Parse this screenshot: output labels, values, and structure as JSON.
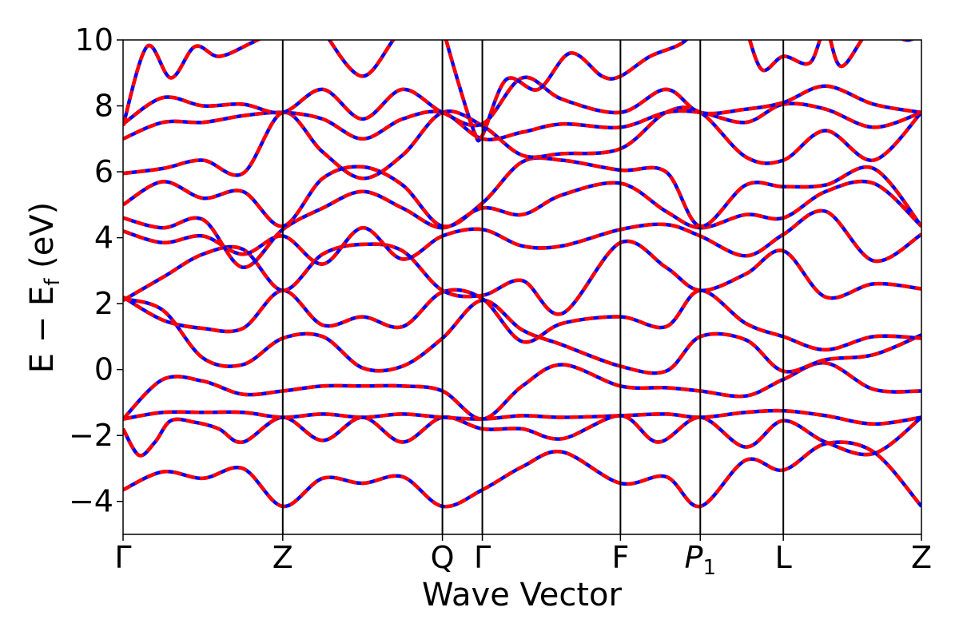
{
  "chart_data": {
    "type": "line",
    "title": "",
    "xlabel": "Wave Vector",
    "ylabel": {
      "main": "E − E",
      "sub": "f",
      "unit": " (eV)"
    },
    "ylim": [
      -5,
      10
    ],
    "y_ticks": [
      -4,
      -2,
      0,
      2,
      4,
      6,
      8,
      10
    ],
    "y_tick_labels": [
      "−4",
      "−2",
      "0",
      "2",
      "4",
      "6",
      "8",
      "10"
    ],
    "xlim": [
      0,
      10
    ],
    "high_symmetry_points": [
      {
        "label": "Γ",
        "x": 0
      },
      {
        "label": "Z",
        "x": 2
      },
      {
        "label": "Q",
        "x": 4
      },
      {
        "label": "Γ",
        "x": 4.5
      },
      {
        "label": "F",
        "x": 6.23
      },
      {
        "label": "P",
        "sub": "1",
        "italic": true,
        "x": 7.23
      },
      {
        "label": "L",
        "x": 8.27
      },
      {
        "label": "Z",
        "x": 10
      }
    ],
    "grid": false,
    "line_colors": {
      "base": "#0000ff",
      "overlay": "#ff0000"
    },
    "series": [
      {
        "x": [
          0,
          0.5,
          1.0,
          1.5,
          2.0,
          2.5,
          3.0,
          3.5,
          4.0,
          4.5,
          5.0,
          5.5,
          6.23,
          6.8,
          7.23,
          7.8,
          8.27,
          8.8,
          9.4,
          10
        ],
        "values": [
          -3.65,
          -3.1,
          -3.3,
          -3.0,
          -4.15,
          -3.3,
          -3.45,
          -3.25,
          -4.15,
          -3.65,
          -2.95,
          -2.5,
          -3.45,
          -3.25,
          -4.15,
          -2.75,
          -3.05,
          -2.25,
          -2.5,
          -4.15
        ]
      },
      {
        "x": [
          0,
          0.2,
          0.4,
          0.6,
          0.9,
          1.2,
          1.5,
          2.0,
          2.5,
          3.0,
          3.5,
          4.0,
          4.5,
          5.0,
          5.5,
          6.23,
          6.7,
          7.23,
          7.8,
          8.27,
          8.8,
          9.4,
          10
        ],
        "values": [
          -1.8,
          -2.6,
          -2.2,
          -1.55,
          -1.6,
          -1.8,
          -2.2,
          -1.45,
          -2.15,
          -1.45,
          -2.2,
          -1.45,
          -1.8,
          -1.8,
          -2.1,
          -1.4,
          -2.2,
          -1.45,
          -2.35,
          -1.55,
          -2.2,
          -2.55,
          -1.45
        ]
      },
      {
        "x": [
          0,
          0.5,
          1.0,
          1.5,
          2.0,
          2.5,
          3.0,
          3.5,
          4.0,
          4.5,
          5.0,
          5.5,
          6.23,
          6.8,
          7.23,
          7.8,
          8.27,
          8.8,
          9.4,
          10
        ],
        "values": [
          -1.5,
          -1.3,
          -1.3,
          -1.3,
          -1.45,
          -1.35,
          -1.45,
          -1.35,
          -1.45,
          -1.5,
          -1.4,
          -1.45,
          -1.4,
          -1.35,
          -1.45,
          -1.3,
          -1.25,
          -1.4,
          -1.65,
          -1.45
        ]
      },
      {
        "x": [
          0,
          0.5,
          1.0,
          1.5,
          2.0,
          2.5,
          3.0,
          3.5,
          4.0,
          4.5,
          5.0,
          5.5,
          6.23,
          6.8,
          7.23,
          7.8,
          8.27,
          8.8,
          9.4,
          10
        ],
        "values": [
          -1.5,
          -0.3,
          -0.35,
          -0.75,
          -0.65,
          -0.5,
          -0.5,
          -0.5,
          -0.65,
          -1.5,
          -0.5,
          0.15,
          -0.5,
          -0.55,
          -0.65,
          -0.8,
          -0.3,
          0.2,
          -0.6,
          -0.65
        ]
      },
      {
        "x": [
          0,
          0.5,
          1.0,
          1.5,
          2.0,
          2.5,
          3.0,
          3.5,
          4.0,
          4.5,
          5.0,
          5.5,
          6.23,
          6.8,
          7.23,
          7.8,
          8.27,
          8.8,
          9.4,
          10
        ],
        "values": [
          2.15,
          1.8,
          0.35,
          0.15,
          0.95,
          1.0,
          0.05,
          0.1,
          0.95,
          2.1,
          1.2,
          0.75,
          0.1,
          -0.05,
          1.0,
          0.9,
          -0.05,
          0.3,
          0.45,
          1.05
        ]
      },
      {
        "x": [
          0,
          0.5,
          1.0,
          1.5,
          2.0,
          2.5,
          3.0,
          3.5,
          4.0,
          4.5,
          5.0,
          5.5,
          6.23,
          6.8,
          7.23,
          7.8,
          8.27,
          8.8,
          9.4,
          10
        ],
        "values": [
          2.2,
          1.5,
          1.25,
          1.25,
          2.4,
          1.35,
          1.6,
          1.3,
          2.35,
          2.15,
          0.85,
          1.4,
          1.6,
          1.3,
          2.4,
          1.4,
          1.0,
          0.6,
          1.0,
          0.95
        ]
      },
      {
        "x": [
          0,
          0.5,
          1.0,
          1.5,
          2.0,
          2.5,
          3.0,
          3.5,
          4.0,
          4.5,
          5.0,
          5.5,
          6.23,
          6.8,
          7.23,
          7.8,
          8.27,
          8.8,
          9.4,
          10
        ],
        "values": [
          2.1,
          2.8,
          3.5,
          3.65,
          2.4,
          3.5,
          3.8,
          3.6,
          2.4,
          2.25,
          2.7,
          1.7,
          3.85,
          3.1,
          2.4,
          2.9,
          3.6,
          2.2,
          2.6,
          2.45
        ]
      },
      {
        "x": [
          0,
          0.5,
          1.0,
          1.5,
          2.0,
          2.5,
          3.0,
          3.5,
          4.0,
          4.5,
          5.0,
          5.5,
          6.23,
          6.8,
          7.23,
          7.8,
          8.27,
          8.8,
          9.4,
          10
        ],
        "values": [
          4.2,
          3.85,
          4.05,
          3.5,
          4.05,
          3.2,
          4.3,
          3.35,
          4.05,
          4.25,
          3.75,
          3.75,
          4.25,
          4.4,
          4.05,
          3.45,
          4.1,
          4.8,
          3.3,
          4.1
        ]
      },
      {
        "x": [
          0,
          0.5,
          1.0,
          1.5,
          2.0,
          2.5,
          3.0,
          3.5,
          4.0,
          4.5,
          5.0,
          5.5,
          6.23,
          6.8,
          7.23,
          7.8,
          8.27,
          8.8,
          9.4,
          10
        ],
        "values": [
          4.6,
          4.3,
          4.55,
          3.1,
          4.25,
          4.9,
          5.4,
          4.9,
          4.3,
          4.9,
          4.7,
          5.3,
          5.65,
          4.8,
          4.3,
          4.7,
          4.6,
          5.4,
          5.65,
          4.35
        ]
      },
      {
        "x": [
          0,
          0.5,
          1.0,
          1.5,
          2.0,
          2.5,
          3.0,
          3.5,
          4.0,
          4.5,
          5.0,
          5.5,
          6.23,
          6.8,
          7.23,
          7.8,
          8.27,
          8.8,
          9.4,
          10
        ],
        "values": [
          5.0,
          5.7,
          5.2,
          5.4,
          4.35,
          5.8,
          6.15,
          5.6,
          4.35,
          5.05,
          6.3,
          6.35,
          6.05,
          6.0,
          4.35,
          5.6,
          5.55,
          5.6,
          6.1,
          4.35
        ]
      },
      {
        "x": [
          0,
          0.5,
          1.0,
          1.5,
          2.0,
          2.5,
          3.0,
          3.5,
          4.0,
          4.5,
          5.0,
          5.5,
          6.23,
          6.8,
          7.23,
          7.8,
          8.27,
          8.8,
          9.4,
          10
        ],
        "values": [
          5.95,
          6.1,
          6.35,
          5.95,
          7.8,
          6.6,
          5.8,
          6.5,
          7.8,
          7.4,
          6.5,
          6.55,
          6.7,
          7.8,
          7.8,
          6.45,
          6.35,
          7.25,
          6.35,
          7.8
        ]
      },
      {
        "x": [
          0,
          0.5,
          1.0,
          1.5,
          2.0,
          2.5,
          3.0,
          3.5,
          4.0,
          4.5,
          5.0,
          5.5,
          6.23,
          6.8,
          7.23,
          7.8,
          8.27,
          8.8,
          9.4,
          10
        ],
        "values": [
          7.0,
          7.5,
          7.5,
          7.7,
          7.8,
          7.6,
          7.0,
          7.6,
          7.8,
          7.0,
          7.2,
          7.45,
          7.35,
          7.8,
          7.8,
          7.5,
          8.05,
          7.9,
          7.35,
          7.8
        ]
      },
      {
        "x": [
          0,
          0.5,
          1.0,
          1.5,
          2.0,
          2.5,
          3.0,
          3.5,
          4.0,
          4.5,
          5.0,
          5.5,
          6.23,
          6.8,
          7.23,
          7.8,
          8.27,
          8.8,
          9.4,
          10
        ],
        "values": [
          7.45,
          8.25,
          8.0,
          8.05,
          7.8,
          8.5,
          7.6,
          8.5,
          7.8,
          7.45,
          8.85,
          8.2,
          7.8,
          8.5,
          7.8,
          7.9,
          8.1,
          8.6,
          8.05,
          7.8
        ]
      },
      {
        "x": [
          0,
          0.3,
          0.6,
          0.9,
          1.2,
          1.6,
          2.0
        ],
        "values": [
          7.4,
          9.8,
          8.85,
          9.8,
          9.5,
          9.9,
          10.4
        ]
      },
      {
        "x": [
          2.5,
          3.0,
          3.5,
          4.0,
          4.1
        ],
        "values": [
          10.3,
          8.9,
          10.3,
          10.5,
          10.8
        ]
      },
      {
        "x": [
          4.0,
          4.2,
          4.4,
          4.5,
          4.8,
          5.2,
          5.6,
          6.0,
          6.23,
          6.6,
          7.0,
          7.23
        ],
        "values": [
          10.4,
          8.7,
          7.2,
          7.1,
          8.8,
          8.5,
          9.6,
          8.9,
          8.9,
          9.5,
          9.9,
          10.5
        ]
      },
      {
        "x": [
          7.8,
          8.0,
          8.27,
          8.6,
          8.8,
          9.0,
          9.4,
          9.8,
          10
        ],
        "values": [
          10.4,
          9.1,
          9.5,
          9.3,
          10.3,
          9.2,
          10.4,
          10.0,
          10.2
        ]
      }
    ]
  }
}
